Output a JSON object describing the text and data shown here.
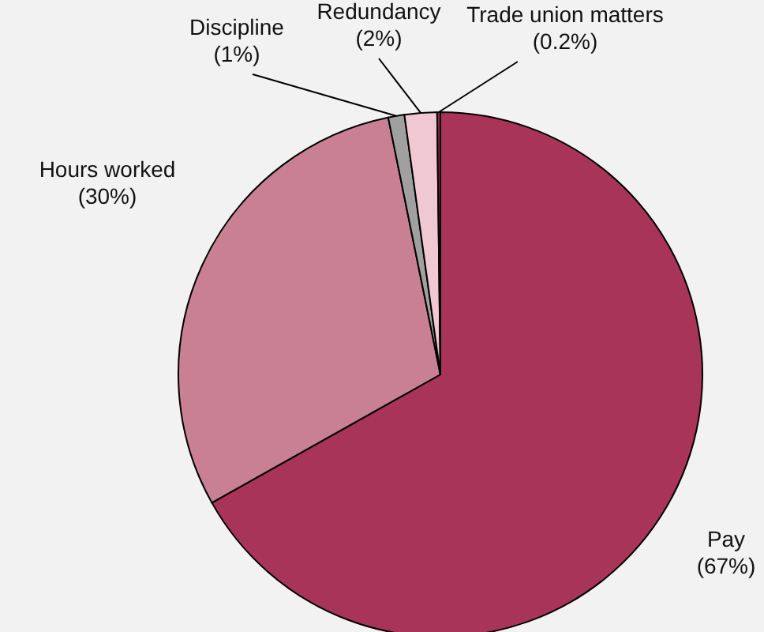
{
  "chart_data": {
    "type": "pie",
    "categories": [
      "Pay",
      "Hours worked",
      "Discipline",
      "Redundancy",
      "Trade union matters"
    ],
    "values": [
      67,
      30,
      1,
      2,
      0.2
    ],
    "colors": [
      "#a8345a",
      "#c98094",
      "#a0a0a0",
      "#f0c8d4",
      "#8e2a4c"
    ],
    "value_labels": [
      "(67%)",
      "(30%)",
      "(1%)",
      "(2%)",
      "(0.2%)"
    ]
  }
}
